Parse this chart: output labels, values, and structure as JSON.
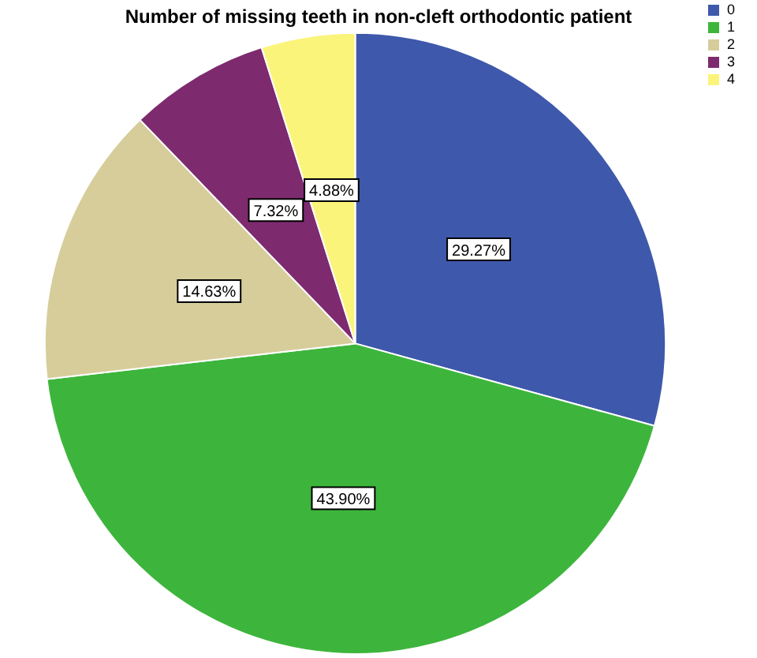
{
  "chart_data": {
    "type": "pie",
    "title": "Number of missing teeth in non-cleft orthodontic patient",
    "categories": [
      "0",
      "1",
      "2",
      "3",
      "4"
    ],
    "values": [
      29.27,
      43.9,
      14.63,
      7.32,
      4.88
    ],
    "value_labels": [
      "29.27%",
      "43.90%",
      "14.63%",
      "7.32%",
      "4.88%"
    ],
    "colors": [
      "#3e58ab",
      "#3db53c",
      "#d6cd9b",
      "#7d2a6f",
      "#fbf47a"
    ],
    "legend": "top right"
  }
}
